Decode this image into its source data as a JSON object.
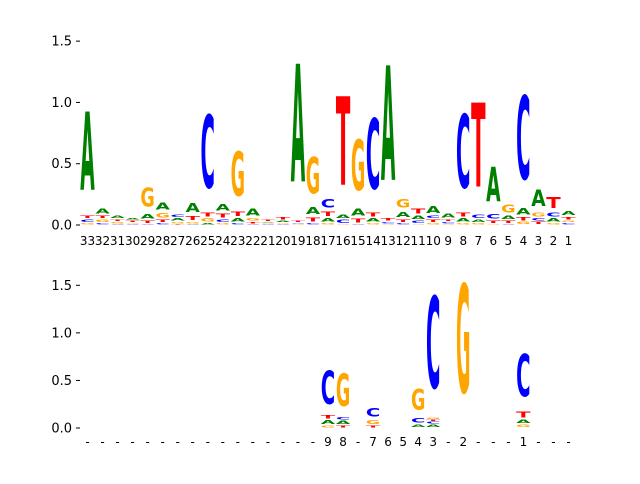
{
  "colors": {
    "A": "#008000",
    "C": "#0000ff",
    "G": "#ffa500",
    "T": "#ff0000",
    "axis": "#000000",
    "background": "#ffffff"
  },
  "chart_data": [
    {
      "type": "sequence-logo",
      "ylim": [
        0,
        1.55
      ],
      "yticks": [
        0.0,
        0.5,
        1.0,
        1.5
      ],
      "ytick_labels": [
        "0.0",
        "0.5",
        "1.0",
        "1.5"
      ],
      "xtick_labels": [
        "33",
        "32",
        "31",
        "30",
        "29",
        "28",
        "27",
        "26",
        "25",
        "24",
        "23",
        "22",
        "21",
        "20",
        "19",
        "18",
        "17",
        "16",
        "15",
        "14",
        "13",
        "12",
        "11",
        "10",
        "9",
        "8",
        "7",
        "6",
        "5",
        "4",
        "3",
        "2",
        "1"
      ],
      "columns": [
        [
          [
            "G",
            0.02
          ],
          [
            "C",
            0.03
          ],
          [
            "T",
            0.03
          ],
          [
            "A",
            1.02
          ]
        ],
        [
          [
            "C",
            0.02
          ],
          [
            "G",
            0.03
          ],
          [
            "T",
            0.03
          ],
          [
            "A",
            0.07
          ]
        ],
        [
          [
            "C",
            0.01
          ],
          [
            "G",
            0.02
          ],
          [
            "T",
            0.02
          ],
          [
            "A",
            0.03
          ]
        ],
        [
          [
            "C",
            0.01
          ],
          [
            "G",
            0.01
          ],
          [
            "T",
            0.02
          ],
          [
            "A",
            0.02
          ]
        ],
        [
          [
            "C",
            0.01
          ],
          [
            "T",
            0.03
          ],
          [
            "A",
            0.06
          ],
          [
            "G",
            0.25
          ]
        ],
        [
          [
            "C",
            0.02
          ],
          [
            "T",
            0.03
          ],
          [
            "G",
            0.06
          ],
          [
            "A",
            0.09
          ]
        ],
        [
          [
            "T",
            0.01
          ],
          [
            "G",
            0.02
          ],
          [
            "A",
            0.03
          ],
          [
            "C",
            0.03
          ]
        ],
        [
          [
            "C",
            0.01
          ],
          [
            "G",
            0.02
          ],
          [
            "T",
            0.05
          ],
          [
            "A",
            0.12
          ]
        ],
        [
          [
            "A",
            0.02
          ],
          [
            "G",
            0.04
          ],
          [
            "T",
            0.05
          ],
          [
            "C",
            0.95
          ]
        ],
        [
          [
            "G",
            0.02
          ],
          [
            "C",
            0.03
          ],
          [
            "T",
            0.05
          ],
          [
            "A",
            0.08
          ]
        ],
        [
          [
            "C",
            0.02
          ],
          [
            "A",
            0.04
          ],
          [
            "T",
            0.06
          ],
          [
            "G",
            0.58
          ]
        ],
        [
          [
            "C",
            0.01
          ],
          [
            "T",
            0.02
          ],
          [
            "G",
            0.03
          ],
          [
            "A",
            0.09
          ]
        ],
        [
          [
            "C",
            0.01
          ],
          [
            "G",
            0.01
          ],
          [
            "A",
            0.01
          ],
          [
            "T",
            0.02
          ]
        ],
        [
          [
            "C",
            0.01
          ],
          [
            "G",
            0.01
          ],
          [
            "A",
            0.02
          ],
          [
            "T",
            0.03
          ]
        ],
        [
          [
            "G",
            0.01
          ],
          [
            "C",
            0.01
          ],
          [
            "T",
            0.02
          ],
          [
            "A",
            1.54
          ]
        ],
        [
          [
            "C",
            0.02
          ],
          [
            "T",
            0.05
          ],
          [
            "A",
            0.09
          ],
          [
            "G",
            0.48
          ]
        ],
        [
          [
            "G",
            0.02
          ],
          [
            "A",
            0.04
          ],
          [
            "T",
            0.06
          ],
          [
            "C",
            0.11
          ]
        ],
        [
          [
            "G",
            0.01
          ],
          [
            "C",
            0.04
          ],
          [
            "A",
            0.04
          ],
          [
            "T",
            1.16
          ]
        ],
        [
          [
            "C",
            0.01
          ],
          [
            "T",
            0.05
          ],
          [
            "A",
            0.09
          ],
          [
            "G",
            0.66
          ]
        ],
        [
          [
            "G",
            0.02
          ],
          [
            "A",
            0.04
          ],
          [
            "T",
            0.05
          ],
          [
            "C",
            0.92
          ]
        ],
        [
          [
            "G",
            0.01
          ],
          [
            "C",
            0.02
          ],
          [
            "T",
            0.03
          ],
          [
            "A",
            1.5
          ]
        ],
        [
          [
            "C",
            0.02
          ],
          [
            "T",
            0.03
          ],
          [
            "A",
            0.07
          ],
          [
            "G",
            0.11
          ]
        ],
        [
          [
            "G",
            0.01
          ],
          [
            "C",
            0.03
          ],
          [
            "A",
            0.04
          ],
          [
            "T",
            0.07
          ]
        ],
        [
          [
            "G",
            0.02
          ],
          [
            "T",
            0.03
          ],
          [
            "C",
            0.03
          ],
          [
            "A",
            0.09
          ]
        ],
        [
          [
            "G",
            0.01
          ],
          [
            "C",
            0.02
          ],
          [
            "T",
            0.02
          ],
          [
            "A",
            0.05
          ]
        ],
        [
          [
            "G",
            0.02
          ],
          [
            "A",
            0.04
          ],
          [
            "T",
            0.05
          ],
          [
            "C",
            0.96
          ]
        ],
        [
          [
            "G",
            0.02
          ],
          [
            "A",
            0.03
          ],
          [
            "C",
            0.04
          ],
          [
            "T",
            1.1
          ]
        ],
        [
          [
            "G",
            0.01
          ],
          [
            "T",
            0.03
          ],
          [
            "C",
            0.06
          ],
          [
            "A",
            0.45
          ]
        ],
        [
          [
            "C",
            0.01
          ],
          [
            "T",
            0.03
          ],
          [
            "A",
            0.04
          ],
          [
            "G",
            0.1
          ]
        ],
        [
          [
            "G",
            0.03
          ],
          [
            "T",
            0.04
          ],
          [
            "A",
            0.08
          ],
          [
            "C",
            1.09
          ]
        ],
        [
          [
            "T",
            0.03
          ],
          [
            "C",
            0.03
          ],
          [
            "G",
            0.05
          ],
          [
            "A",
            0.21
          ]
        ],
        [
          [
            "G",
            0.02
          ],
          [
            "A",
            0.04
          ],
          [
            "C",
            0.05
          ],
          [
            "T",
            0.14
          ]
        ],
        [
          [
            "C",
            0.02
          ],
          [
            "G",
            0.02
          ],
          [
            "T",
            0.03
          ],
          [
            "A",
            0.05
          ]
        ]
      ]
    },
    {
      "type": "sequence-logo",
      "ylim": [
        0,
        1.85
      ],
      "yticks": [
        0.0,
        0.5,
        1.0,
        1.5
      ],
      "ytick_labels": [
        "0.0",
        "0.5",
        "1.0",
        "1.5"
      ],
      "xtick_labels": [
        "-",
        "-",
        "-",
        "-",
        "-",
        "-",
        "-",
        "-",
        "-",
        "-",
        "-",
        "-",
        "-",
        "-",
        "-",
        "-",
        "9",
        "8",
        "-",
        "7",
        "6",
        "5",
        "4",
        "3",
        "-",
        "2",
        "-",
        "-",
        "-",
        "1",
        "-",
        "-",
        "-"
      ],
      "columns": [
        [],
        [],
        [],
        [],
        [],
        [],
        [],
        [],
        [],
        [],
        [],
        [],
        [],
        [],
        [],
        [],
        [
          [
            "G",
            0.03
          ],
          [
            "A",
            0.06
          ],
          [
            "T",
            0.05
          ],
          [
            "C",
            0.56
          ]
        ],
        [
          [
            "T",
            0.03
          ],
          [
            "A",
            0.05
          ],
          [
            "C",
            0.04
          ],
          [
            "G",
            0.55
          ]
        ],
        [],
        [
          [
            "T",
            0.03
          ],
          [
            "G",
            0.06
          ],
          [
            "C",
            0.14
          ]
        ],
        [],
        [],
        [
          [
            "A",
            0.04
          ],
          [
            "C",
            0.08
          ],
          [
            "G",
            0.35
          ]
        ],
        [
          [
            "A",
            0.04
          ],
          [
            "C",
            0.03
          ],
          [
            "T",
            0.02
          ],
          [
            "G",
            0.02
          ],
          [
            "C",
            1.55
          ]
        ],
        [],
        [
          [
            "G",
            1.83
          ]
        ],
        [],
        [],
        [],
        [
          [
            "G",
            0.04
          ],
          [
            "A",
            0.05
          ],
          [
            "T",
            0.1
          ],
          [
            "C",
            0.71
          ]
        ],
        [],
        [],
        []
      ]
    }
  ]
}
